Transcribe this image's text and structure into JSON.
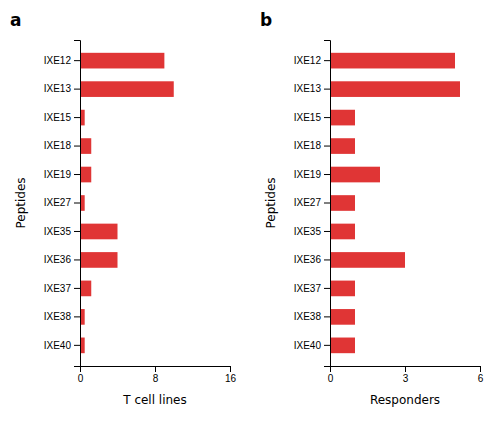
{
  "chart_data": [
    {
      "type": "bar",
      "orientation": "horizontal",
      "title": "a",
      "categories": [
        "IXE12",
        "IXE13",
        "IXE15",
        "IXE18",
        "IXE19",
        "IXE27",
        "IXE35",
        "IXE36",
        "IXE37",
        "IXE38",
        "IXE40"
      ],
      "values": [
        9,
        10,
        0.5,
        1.2,
        1.2,
        0.5,
        4,
        4,
        1.2,
        0.5,
        0.5
      ],
      "color": "#e03535",
      "xlabel": "T cell lines",
      "ylabel": "Peptides",
      "xlim": [
        0,
        16
      ],
      "xticks": [
        0,
        8,
        16
      ],
      "grid": false
    },
    {
      "type": "bar",
      "orientation": "horizontal",
      "title": "b",
      "categories": [
        "IXE12",
        "IXE13",
        "IXE15",
        "IXE18",
        "IXE19",
        "IXE27",
        "IXE35",
        "IXE36",
        "IXE37",
        "IXE38",
        "IXE40"
      ],
      "values": [
        5,
        5.2,
        1,
        1,
        2,
        1,
        1,
        3,
        1,
        1,
        1
      ],
      "color": "#e03535",
      "xlabel": "Responders",
      "ylabel": "Peptides",
      "xlim": [
        0,
        6
      ],
      "xticks": [
        0,
        3,
        6
      ],
      "grid": false
    }
  ]
}
